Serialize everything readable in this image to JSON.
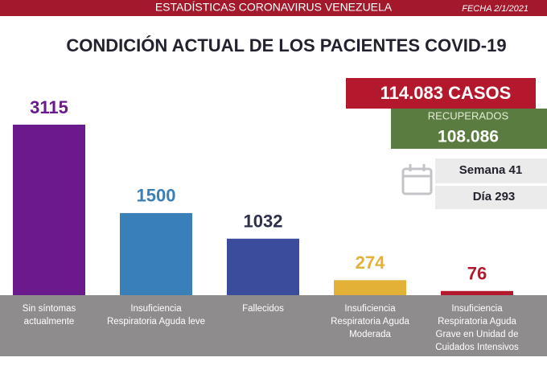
{
  "header": {
    "title": "ESTADÍSTICAS CORONAVIRUS VENEZUELA",
    "date": "FECHA 2/1/2021"
  },
  "chart_data": {
    "type": "bar",
    "title": "CONDICIÓN ACTUAL DE LOS PACIENTES COVID-19",
    "categories": [
      "Sin síntomas\nactualmente",
      "Insuficiencia\nRespiratoria Aguda leve",
      "Fallecidos",
      "Insuficiencia\nRespiratoria Aguda\nModerada",
      "Insuficiencia\nRespiratoria Aguda\nGrave en Unidad de\nCuidados Intensivos"
    ],
    "values": [
      3115,
      1500,
      1032,
      274,
      76
    ],
    "colors": [
      "#6a1a8c",
      "#3a80b8",
      "#3c4c9c",
      "#e2b135",
      "#b3182c"
    ],
    "label_colors": [
      "#6a1a8c",
      "#3a80b8",
      "#2e2f4a",
      "#e2b135",
      "#b3182c"
    ]
  },
  "summary": {
    "cases": "114.083 CASOS",
    "recovered_label": "RECUPERADOS",
    "recovered": "108.086",
    "week": "Semana 41",
    "day": "Día 293"
  }
}
